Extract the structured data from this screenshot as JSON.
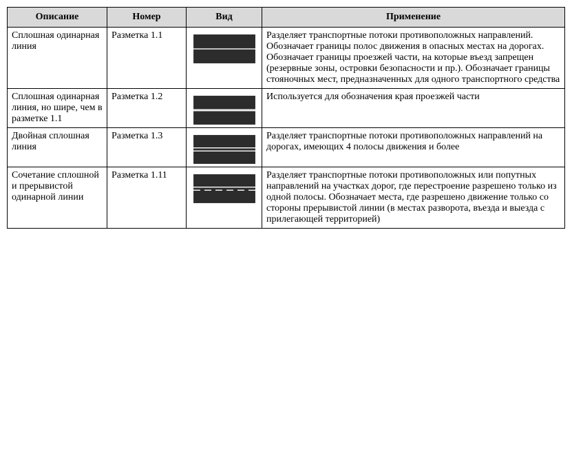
{
  "headers": {
    "desc": "Описание",
    "num": "Номер",
    "view": "Вид",
    "app": "Применение"
  },
  "rows": [
    {
      "desc": "Сплошная одинарная линия",
      "num": "Разметка 1.1",
      "marking": "single-thin",
      "app": "Разделяет транспортные потоки противоположных направлений. Обозначает границы полос движения в опасных местах на дорогах. Обозначает границы проезжей части, на которые въезд запрещен (резервные зоны, островки безопасности и пр.). Обозначает границы стояночных мест, предназначенных для одного транспортного средства"
    },
    {
      "desc": "Сплошная одинарная линия, но шире, чем в разметке 1.1",
      "num": "Разметка 1.2",
      "marking": "single-thick",
      "app": "Используется для обозначения края проезжей части"
    },
    {
      "desc": "Двойная сплошная линия",
      "num": "Разметка 1.3",
      "marking": "double-solid",
      "app": "Разделяет транспортные потоки противоположных направлений на дорогах, имеющих 4 полосы движения и более"
    },
    {
      "desc": "Сочетание сплошной и прерывистой одинарной линии",
      "num": "Разметка 1.11",
      "marking": "solid-dashed",
      "app": "Разделяет транспортные потоки противоположных или попутных направлений на участках дорог, где перестроение разрешено только из одной полосы. Обозначает места, где разрешено движение только со стороны прерывистой линии (в местах разворота, въезда и выезда с прилегающей территорией)"
    }
  ],
  "road_style": {
    "width": 90,
    "height": 42,
    "asphalt": "#2c2c2c",
    "line": "#f0f0f0",
    "border": "#555"
  }
}
